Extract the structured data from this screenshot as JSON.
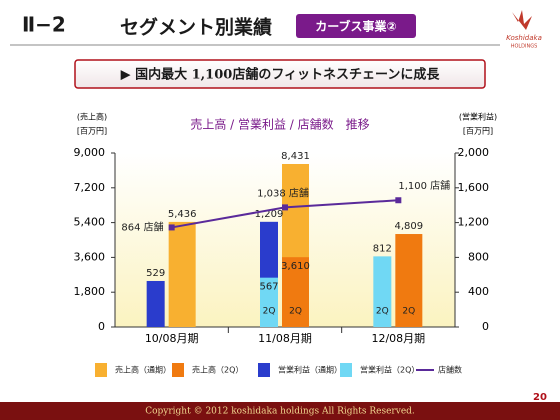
{
  "header": {
    "section": "Ⅱ−2",
    "title": "セグメント別業績",
    "badge": "カーブス事業②",
    "logo": "Koshidaka",
    "logo_sub": "HOLDINGS"
  },
  "banner": "▶ 国内最大 1,100店舗のフィットネスチェーンに成長",
  "chart_data": {
    "type": "bar",
    "title": "売上高 / 営業利益 / 店舗数　推移",
    "y_label": "(売上高)",
    "y_unit": "[百万円]",
    "y2_label": "(営業利益)",
    "y2_unit": "[百万円]",
    "categories": [
      "10/08月期",
      "11/08月期",
      "12/08月期"
    ],
    "ylim": [
      0,
      9000
    ],
    "yticks": [
      0,
      {
        "value": 1800,
        "label": "1,800"
      },
      {
        "value": 3600,
        "label": "3,600"
      },
      {
        "value": 5400,
        "label": "5,400"
      },
      {
        "value": 7200,
        "label": "7,200"
      },
      {
        "value": 9000,
        "label": "9,000"
      }
    ],
    "y2lim": [
      0,
      2000
    ],
    "y2ticks": [
      0,
      400,
      800,
      {
        "value": 1200,
        "label": "1,200"
      },
      {
        "value": 1600,
        "label": "1,600"
      },
      {
        "value": 2000,
        "label": "2,000"
      }
    ],
    "y3lim": [
      0,
      1510
    ],
    "series": [
      {
        "name": "売上高（通期）",
        "color": "#f8b030",
        "type": "bar",
        "slot": "right",
        "values": [
          5436,
          8431,
          null
        ],
        "value_labels": [
          "5,436",
          "8,431",
          null
        ]
      },
      {
        "name": "売上高（2Q）",
        "color": "#f07a10",
        "type": "bar",
        "slot": "right",
        "inner_label": "2Q",
        "values": [
          null,
          3610,
          4809
        ],
        "value_labels": [
          null,
          "3,610",
          "4,809"
        ]
      },
      {
        "name": "営業利益（通期）",
        "color": "#2a3ccc",
        "type": "bar",
        "slot": "left",
        "axis": "y2",
        "values": [
          529,
          1209,
          null
        ],
        "value_labels": [
          "529",
          "1,209",
          null
        ]
      },
      {
        "name": "営業利益（2Q）",
        "color": "#70d8f4",
        "type": "bar",
        "slot": "left",
        "axis": "y2",
        "inner_label": "2Q",
        "values": [
          null,
          567,
          812
        ],
        "value_labels": [
          null,
          "567",
          "812"
        ]
      },
      {
        "name": "店舗数",
        "color": "#5a2a9a",
        "type": "line",
        "axis": "y3",
        "values": [
          864,
          1038,
          1100
        ],
        "value_labels": [
          "864 店舗",
          "1,038 店舗",
          "1,100 店舗"
        ]
      }
    ]
  },
  "footer": {
    "copyright": "Copyright © 2012 koshidaka holdings All Rights Reserved.",
    "page": "20"
  }
}
